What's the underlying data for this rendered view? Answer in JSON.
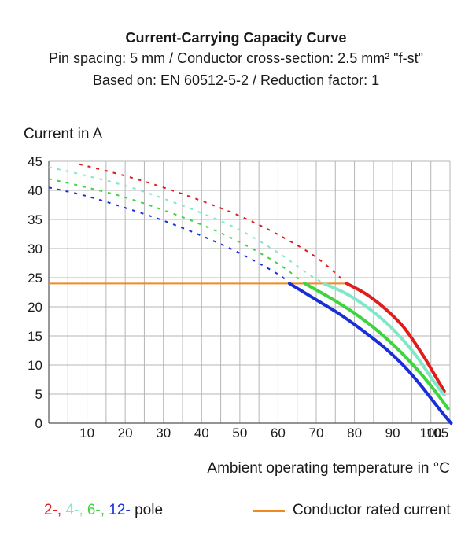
{
  "titles": {
    "main": "Current-Carrying Capacity Curve",
    "sub1": "Pin spacing: 5 mm / Conductor cross-section: 2.5 mm² \"f-st\"",
    "sub2": "Based on: EN 60512-5-2 / Reduction factor: 1"
  },
  "legend": {
    "poles": [
      {
        "label": "2-,",
        "color": "#e01c1c"
      },
      {
        "label": "4-,",
        "color": "#7fe8c8"
      },
      {
        "label": "6-,",
        "color": "#3ed43e"
      },
      {
        "label": "12-",
        "color": "#1a2ed8"
      }
    ],
    "poles_suffix": "pole",
    "rated_label": "Conductor rated current",
    "rated_color": "#f08a1e"
  },
  "chart_data": {
    "type": "line",
    "title": "Current-Carrying Capacity Curve",
    "xlabel": "Ambient operating temperature in °C",
    "ylabel": "Current in A",
    "xlim": [
      0,
      105
    ],
    "ylim": [
      0,
      45
    ],
    "xticks": [
      10,
      20,
      30,
      40,
      50,
      60,
      70,
      80,
      90,
      100,
      105
    ],
    "yticks": [
      0,
      5,
      10,
      15,
      20,
      25,
      30,
      35,
      40,
      45
    ],
    "grid": true,
    "series": [
      {
        "name": "2-pole",
        "color": "#e01c1c",
        "dotted": [
          [
            8,
            44.5
          ],
          [
            20,
            42.5
          ],
          [
            30,
            40.5
          ],
          [
            40,
            38.2
          ],
          [
            50,
            35.6
          ],
          [
            60,
            32.4
          ],
          [
            70,
            28.5
          ],
          [
            78,
            24
          ]
        ],
        "solid": [
          [
            78,
            24
          ],
          [
            83,
            22.2
          ],
          [
            88,
            19.7
          ],
          [
            93,
            16.4
          ],
          [
            98,
            11.6
          ],
          [
            101,
            8.3
          ],
          [
            103.5,
            5.5
          ]
        ]
      },
      {
        "name": "4-pole",
        "color": "#7fe8c8",
        "dotted": [
          [
            0,
            44
          ],
          [
            10,
            42.5
          ],
          [
            20,
            40.8
          ],
          [
            30,
            38.6
          ],
          [
            40,
            36.1
          ],
          [
            50,
            33.2
          ],
          [
            60,
            29.3
          ],
          [
            68,
            25.6
          ],
          [
            72,
            24
          ]
        ],
        "solid": [
          [
            72,
            24
          ],
          [
            78,
            22.2
          ],
          [
            84,
            19.6
          ],
          [
            90,
            16.2
          ],
          [
            96,
            11.7
          ],
          [
            100,
            7.9
          ],
          [
            103.5,
            4.8
          ]
        ]
      },
      {
        "name": "6-pole",
        "color": "#3ed43e",
        "dotted": [
          [
            0,
            42
          ],
          [
            10,
            40.5
          ],
          [
            20,
            38.8
          ],
          [
            30,
            36.6
          ],
          [
            40,
            34.1
          ],
          [
            50,
            31.1
          ],
          [
            60,
            27.4
          ],
          [
            67,
            24
          ]
        ],
        "solid": [
          [
            67,
            24
          ],
          [
            74,
            21.4
          ],
          [
            80,
            18.9
          ],
          [
            86,
            15.9
          ],
          [
            92,
            12.3
          ],
          [
            97,
            8.8
          ],
          [
            101,
            5.6
          ],
          [
            104.5,
            2.5
          ]
        ]
      },
      {
        "name": "12-pole",
        "color": "#1a2ed8",
        "dotted": [
          [
            0,
            40.5
          ],
          [
            10,
            39
          ],
          [
            20,
            37
          ],
          [
            30,
            34.8
          ],
          [
            40,
            32.2
          ],
          [
            50,
            29.2
          ],
          [
            60,
            25.6
          ],
          [
            63,
            24
          ]
        ],
        "solid": [
          [
            63,
            24
          ],
          [
            70,
            21.2
          ],
          [
            76,
            18.8
          ],
          [
            82,
            16
          ],
          [
            88,
            12.9
          ],
          [
            93,
            9.8
          ],
          [
            97,
            6.8
          ],
          [
            100,
            4.3
          ],
          [
            102.5,
            2.2
          ],
          [
            104.5,
            0.6
          ],
          [
            105.3,
            0
          ]
        ]
      }
    ],
    "rated_current": {
      "name": "Conductor rated current",
      "color": "#f08a1e",
      "value": 24,
      "x_range": [
        0,
        78
      ]
    }
  }
}
